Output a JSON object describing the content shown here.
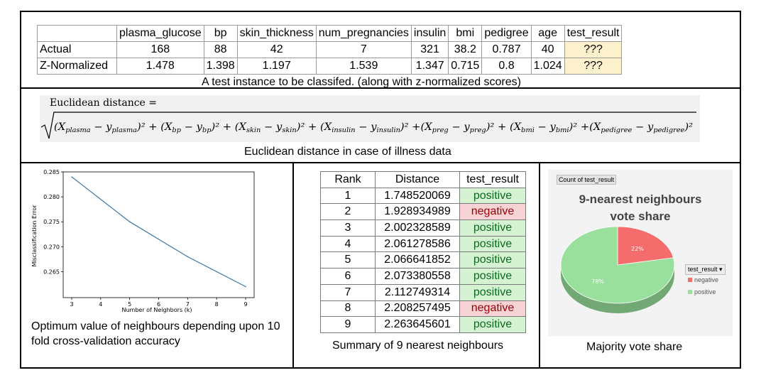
{
  "top_table": {
    "headers": [
      "",
      "plasma_glucose",
      "bp",
      "skin_thickness",
      "num_pregnancies",
      "insulin",
      "bmi",
      "pedigree",
      "age",
      "test_result"
    ],
    "rows": [
      [
        "Actual",
        "168",
        "88",
        "42",
        "7",
        "321",
        "38.2",
        "0.787",
        "40",
        "???"
      ],
      [
        "Z-Normalized",
        "1.478",
        "1.398",
        "1.197",
        "1.539",
        "1.347",
        "0.715",
        "0.8",
        "1.024",
        "???"
      ]
    ],
    "caption": "A test instance to be classifed. (along with z-normalized scores)"
  },
  "formula": {
    "title": "Euclidean distance =",
    "caption": "Euclidean distance in case of illness data"
  },
  "line_chart": {
    "caption_line1": "Optimum value of neighbours depending upon 10",
    "caption_line2": "fold cross-validation accuracy"
  },
  "neighbours_table": {
    "headers": [
      "Rank",
      "Distance",
      "test_result"
    ],
    "rows": [
      {
        "rank": "1",
        "distance": "1.748520069",
        "result": "positive"
      },
      {
        "rank": "2",
        "distance": "1.928934989",
        "result": "negative"
      },
      {
        "rank": "3",
        "distance": "2.002328589",
        "result": "positive"
      },
      {
        "rank": "4",
        "distance": "2.061278586",
        "result": "positive"
      },
      {
        "rank": "5",
        "distance": "2.066641852",
        "result": "positive"
      },
      {
        "rank": "6",
        "distance": "2.073380558",
        "result": "positive"
      },
      {
        "rank": "7",
        "distance": "2.112749314",
        "result": "positive"
      },
      {
        "rank": "8",
        "distance": "2.208257495",
        "result": "negative"
      },
      {
        "rank": "9",
        "distance": "2.263645601",
        "result": "positive"
      }
    ],
    "caption": "Summary of 9 nearest neighbours"
  },
  "pie": {
    "field_tag": "Count of test_result",
    "title_line1": "9-nearest neighbours",
    "title_line2": "vote share",
    "legend_title": "test_result ▾",
    "caption": "Majority vote share"
  },
  "chart_data": [
    {
      "type": "line",
      "xlabel": "Number of Neighbors (k)",
      "ylabel": "Misclassification Error",
      "x": [
        3,
        5,
        7,
        9
      ],
      "y": [
        0.284,
        0.275,
        0.268,
        0.262
      ],
      "xticks": [
        "3",
        "4",
        "5",
        "6",
        "7",
        "8",
        "9"
      ],
      "yticks": [
        "0.285",
        "0.280",
        "0.275",
        "0.270",
        "0.265"
      ],
      "xlim": [
        3,
        9
      ],
      "ylim": [
        0.2615,
        0.285
      ],
      "line_color": "#3b76a5",
      "grid": false
    },
    {
      "type": "pie",
      "title": "9-nearest neighbours vote share",
      "labels": [
        "negative",
        "positive"
      ],
      "values": [
        22,
        78
      ],
      "value_labels": [
        "22%",
        "78%"
      ],
      "colors": [
        "#f56c6c",
        "#98e09b"
      ],
      "legend": "right"
    }
  ]
}
